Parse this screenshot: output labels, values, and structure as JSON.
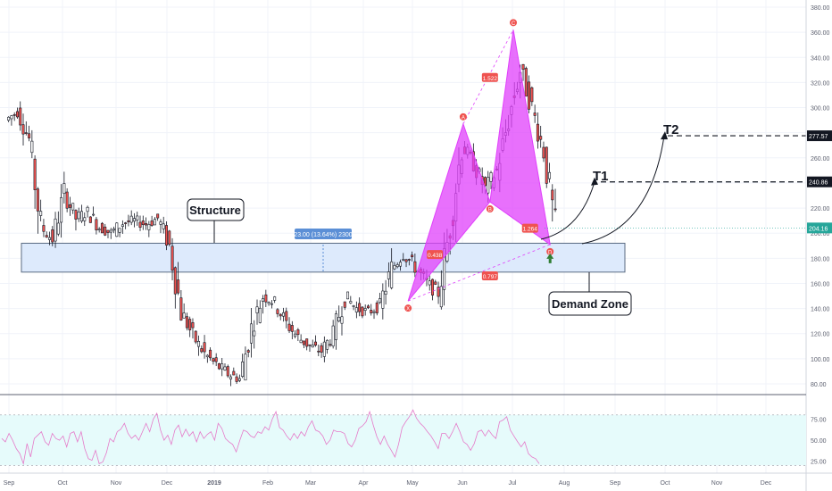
{
  "chart_data": {
    "type": "candlestick",
    "title": "",
    "price_axis": {
      "scale": "linear",
      "range": [
        70,
        390
      ],
      "ticks": [
        80,
        100,
        120,
        140,
        160,
        180,
        200,
        220,
        240,
        260,
        280,
        300,
        320,
        340,
        360,
        380
      ],
      "tick_labels": [
        "80.00",
        "100.00",
        "120.00",
        "140.00",
        "160.00",
        "180.00",
        "200.00",
        "220.00",
        "240.00",
        "260.00",
        "280.00",
        "300.00",
        "320.00",
        "340.00",
        "360.00",
        "380.00"
      ],
      "price_badges": [
        {
          "value": 277.57,
          "label": "277.57",
          "color": "#131722"
        },
        {
          "value": 240.86,
          "label": "240.86",
          "color": "#131722"
        },
        {
          "value": 204.16,
          "label": "204.16",
          "color": "#26a69a"
        }
      ]
    },
    "time_axis": {
      "labels": [
        "Sep",
        "Oct",
        "Nov",
        "Dec",
        "2019",
        "Feb",
        "Mar",
        "Apr",
        "May",
        "Jun",
        "Jul",
        "Aug",
        "Sep",
        "Oct",
        "Nov",
        "Dec"
      ],
      "bold": [
        "2019"
      ]
    },
    "grid": true,
    "price_series": [
      [
        "2018-08-27",
        290
      ],
      [
        "2018-09-03",
        297
      ],
      [
        "2018-09-10",
        275
      ],
      [
        "2018-09-17",
        205
      ],
      [
        "2018-09-24",
        195
      ],
      [
        "2018-10-01",
        232
      ],
      [
        "2018-10-08",
        212
      ],
      [
        "2018-10-15",
        217
      ],
      [
        "2018-10-22",
        205
      ],
      [
        "2018-10-29",
        200
      ],
      [
        "2018-11-05",
        208
      ],
      [
        "2018-11-12",
        210
      ],
      [
        "2018-11-19",
        207
      ],
      [
        "2018-11-26",
        212
      ],
      [
        "2018-12-03",
        190
      ],
      [
        "2018-12-10",
        138
      ],
      [
        "2018-12-17",
        118
      ],
      [
        "2018-12-24",
        104
      ],
      [
        "2018-12-31",
        95
      ],
      [
        "2019-01-07",
        88
      ],
      [
        "2019-01-14",
        84
      ],
      [
        "2019-01-21",
        124
      ],
      [
        "2019-01-28",
        150
      ],
      [
        "2019-02-04",
        145
      ],
      [
        "2019-02-11",
        128
      ],
      [
        "2019-02-18",
        117
      ],
      [
        "2019-02-25",
        110
      ],
      [
        "2019-03-04",
        106
      ],
      [
        "2019-03-11",
        120
      ],
      [
        "2019-03-18",
        150
      ],
      [
        "2019-03-25",
        140
      ],
      [
        "2019-04-01",
        137
      ],
      [
        "2019-04-08",
        143
      ],
      [
        "2019-04-15",
        172
      ],
      [
        "2019-04-22",
        184
      ],
      [
        "2019-04-29",
        173
      ],
      [
        "2019-05-06",
        160
      ],
      [
        "2019-05-13",
        152
      ],
      [
        "2019-05-20",
        205
      ],
      [
        "2019-05-27",
        270
      ],
      [
        "2019-06-03",
        255
      ],
      [
        "2019-06-10",
        235
      ],
      [
        "2019-06-17",
        250
      ],
      [
        "2019-06-24",
        290
      ],
      [
        "2019-07-01",
        330
      ],
      [
        "2019-07-08",
        300
      ],
      [
        "2019-07-15",
        265
      ],
      [
        "2019-07-22",
        205
      ]
    ],
    "rsi": {
      "ticks": [
        25,
        50,
        75
      ],
      "tick_labels": [
        "25.00",
        "50.00",
        "75.00"
      ],
      "band": [
        30,
        70
      ],
      "range": [
        15,
        100
      ],
      "values": [
        52,
        48,
        58,
        50,
        40,
        34,
        22,
        46,
        30,
        52,
        56,
        60,
        48,
        44,
        58,
        52,
        50,
        55,
        42,
        58,
        60,
        48,
        60,
        40,
        28,
        26,
        38,
        22,
        24,
        35,
        52,
        48,
        60,
        63,
        70,
        58,
        52,
        56,
        50,
        60,
        70,
        60,
        75,
        82,
        62,
        50,
        56,
        45,
        62,
        68,
        54,
        63,
        55,
        60,
        48,
        60,
        52,
        57,
        60,
        50,
        70,
        64,
        52,
        48,
        45,
        36,
        50,
        62,
        60,
        55,
        53,
        60,
        58,
        66,
        62,
        75,
        84,
        65,
        62,
        55,
        50,
        58,
        52,
        60,
        55,
        66,
        73,
        62,
        60,
        55,
        45,
        50,
        62,
        60,
        60,
        58,
        46,
        42,
        50,
        64,
        67,
        72,
        84,
        68,
        54,
        45,
        55,
        45,
        38,
        30,
        45,
        65,
        72,
        78,
        86,
        76,
        70,
        66,
        60,
        55,
        48,
        40,
        58,
        58,
        52,
        60,
        70,
        60,
        48,
        45,
        38,
        46,
        60,
        62,
        55,
        62,
        56,
        52,
        72,
        74,
        78,
        62,
        55,
        48,
        42,
        48,
        34,
        30,
        28,
        22
      ]
    },
    "annotations": {
      "structure_label": "Structure",
      "demand_zone_label": "Demand Zone",
      "t1_label": "T1",
      "t2_label": "T2",
      "measure_label": "23.00 (13.64%) 2300",
      "zone": {
        "from": 169,
        "to": 192
      },
      "pattern_points": [
        {
          "label": "X",
          "time": "2019-04-24",
          "price": 146
        },
        {
          "label": "A",
          "time": "2019-05-27",
          "price": 287
        },
        {
          "label": "B",
          "time": "2019-06-12",
          "price": 225
        },
        {
          "label": "C",
          "time": "2019-06-26",
          "price": 362
        },
        {
          "label": "D",
          "time": "2019-07-18",
          "price": 191
        }
      ],
      "ratios": [
        {
          "label": "0.438",
          "time": "2019-05-10",
          "price": 183
        },
        {
          "label": "0.797",
          "time": "2019-06-12",
          "price": 166
        },
        {
          "label": "1.522",
          "time": "2019-06-12",
          "price": 324
        },
        {
          "label": "1.264",
          "time": "2019-07-06",
          "price": 204
        }
      ],
      "target_lines": [
        {
          "label": "T1",
          "price": 240.86
        },
        {
          "label": "T2",
          "price": 277.57
        }
      ],
      "pattern_color": "#e040fb"
    }
  }
}
